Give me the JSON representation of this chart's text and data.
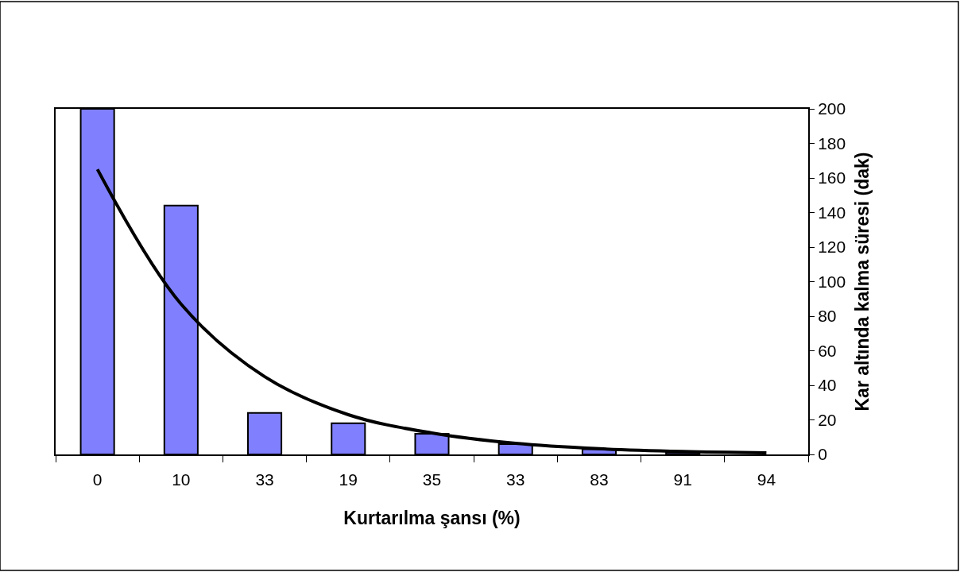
{
  "chart_data": {
    "type": "bar",
    "xlabel": "Kurtarılma şansı (%)",
    "ylabel": "Kar altında kalma süresi (dak)",
    "categories": [
      "0",
      "10",
      "33",
      "19",
      "35",
      "33",
      "83",
      "91",
      "94"
    ],
    "series": [
      {
        "color": "#8080ff",
        "values": [
          200,
          144,
          24,
          18,
          12,
          6,
          3,
          1,
          null
        ]
      },
      {
        "type": "line",
        "color": "#000000",
        "values": [
          165,
          87,
          45,
          23,
          12.4,
          6.4,
          3.3,
          1.7,
          0.9
        ]
      }
    ],
    "ylim": [
      0,
      200
    ],
    "yticks": [
      0,
      20,
      40,
      60,
      80,
      100,
      120,
      140,
      160,
      180,
      200
    ],
    "grid": false
  }
}
